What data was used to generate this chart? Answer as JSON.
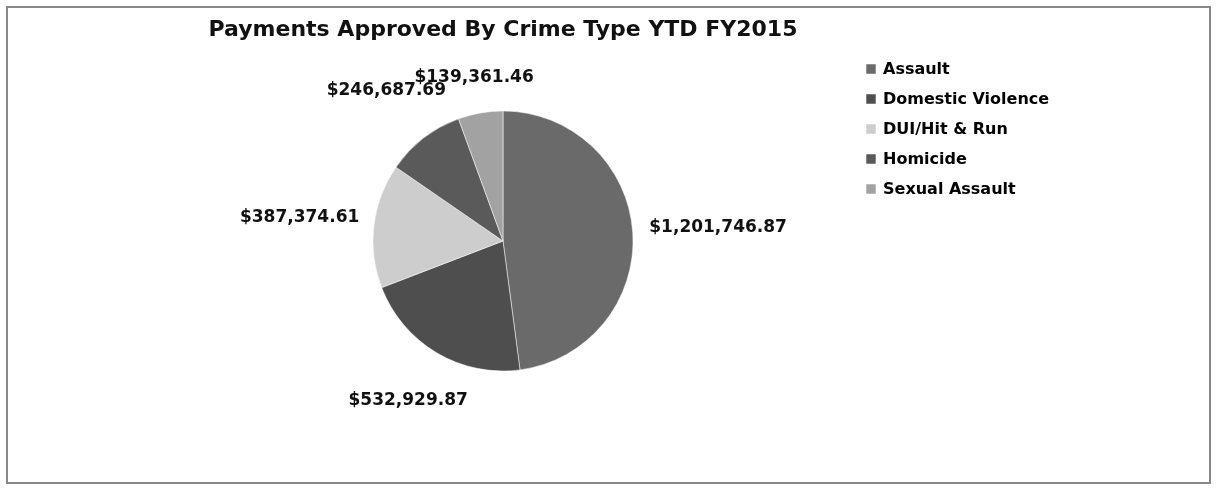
{
  "chart_data": {
    "type": "pie",
    "title": "Payments Approved By Crime Type YTD FY2015",
    "categories": [
      "Assault",
      "Domestic Violence",
      "DUI/Hit & Run",
      "Homicide",
      "Sexual Assault"
    ],
    "values": [
      1201746.87,
      532929.87,
      387374.61,
      246687.69,
      139361.46
    ],
    "value_labels": [
      "$1,201,746.87",
      "$532,929.87",
      "$387,374.61",
      "$246,687.69",
      "$139,361.46"
    ],
    "colors": [
      "#6a6a6a",
      "#4e4e4e",
      "#cdcdcd",
      "#5a5a5a",
      "#a2a2a2"
    ],
    "legend": "right"
  }
}
